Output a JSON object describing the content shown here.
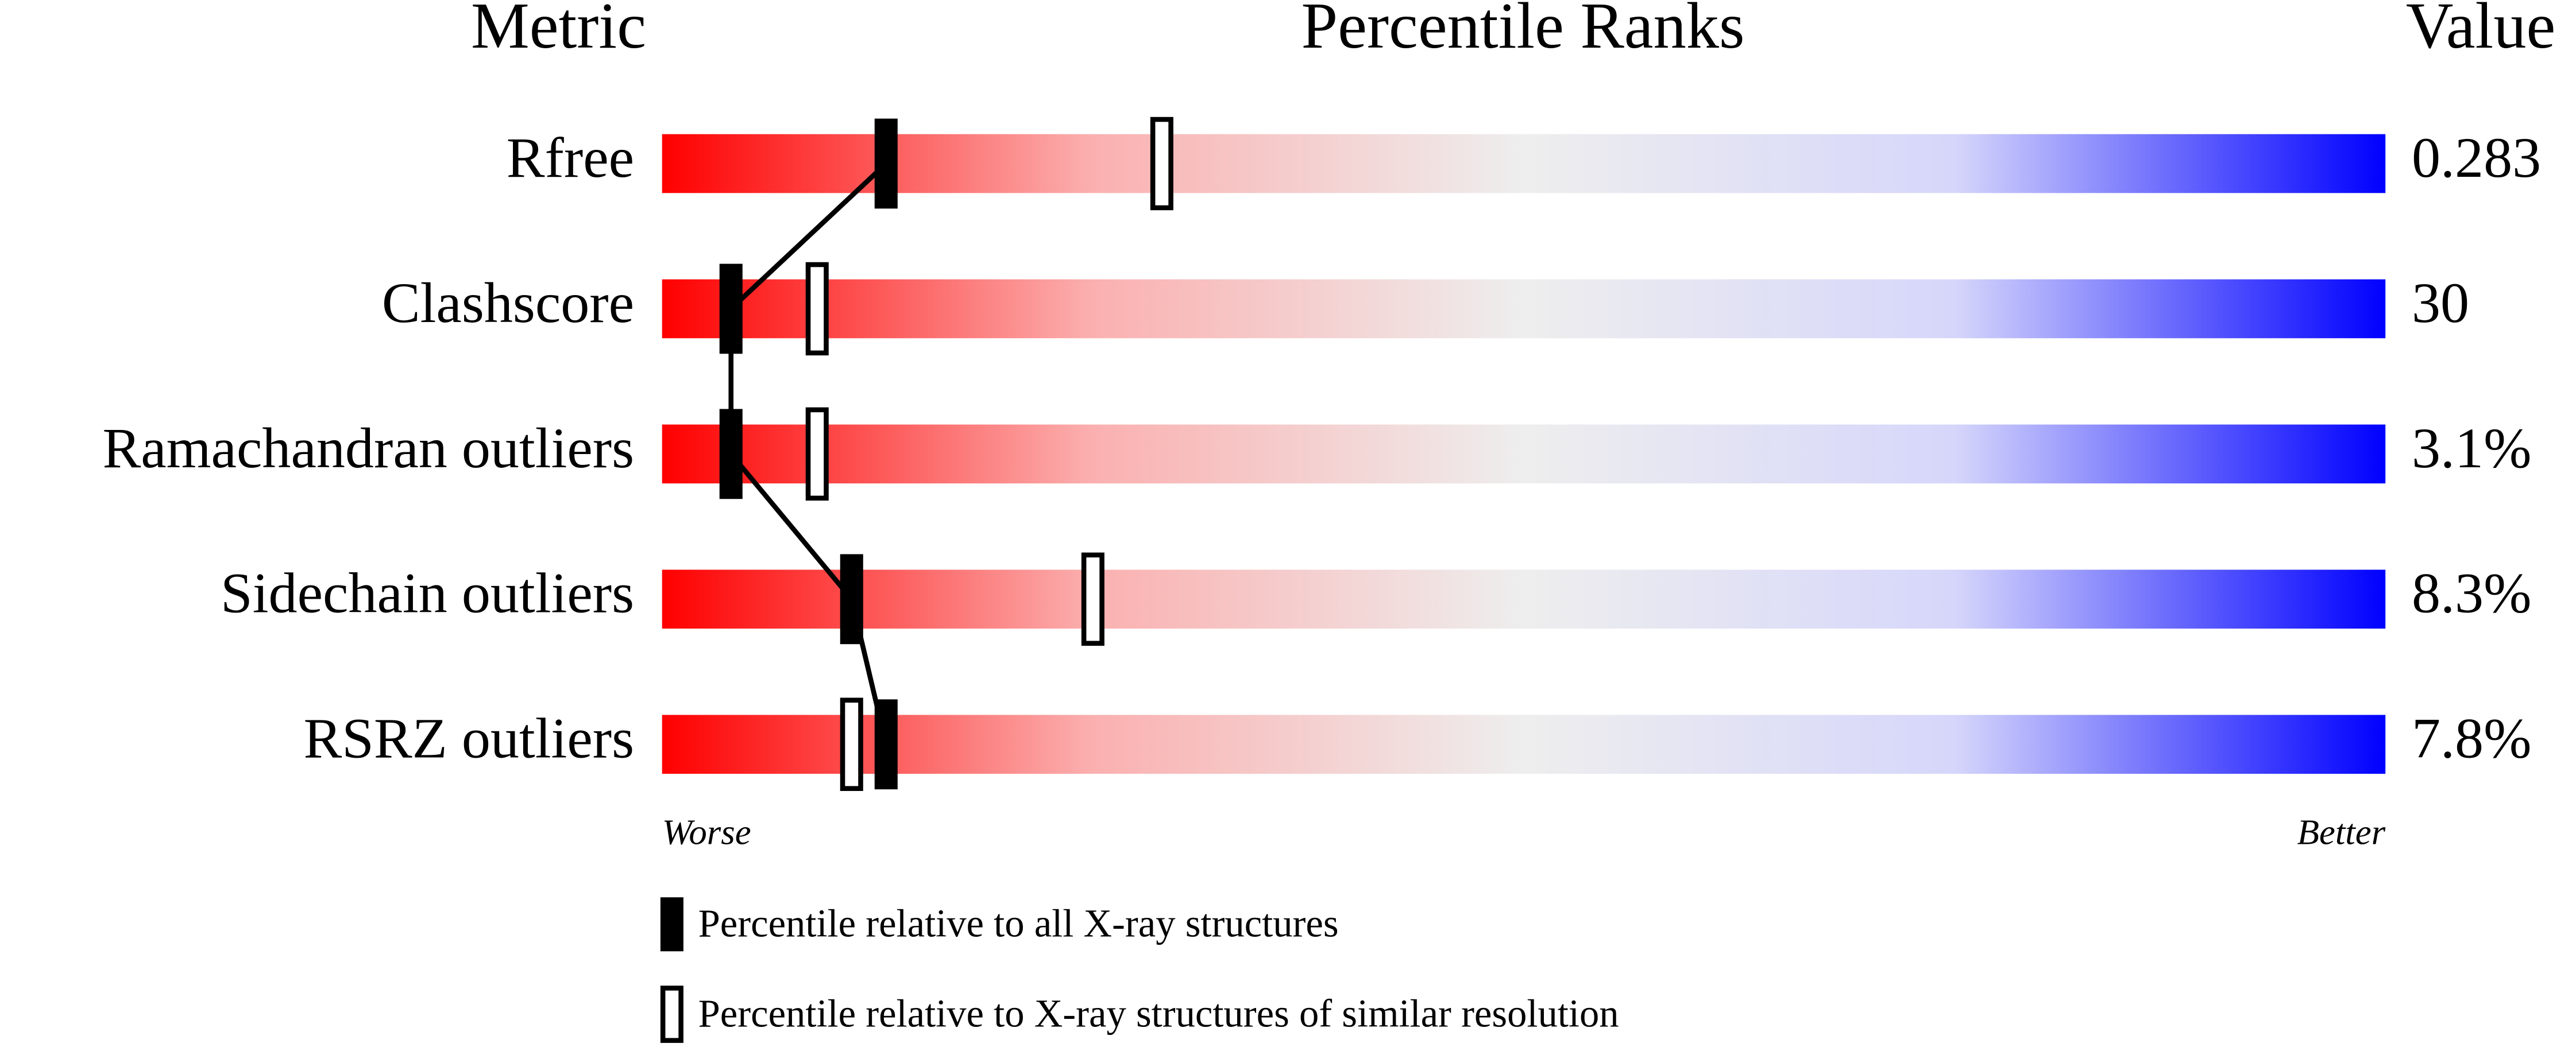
{
  "chart_data": {
    "type": "percentile",
    "title": "Percentile Ranks",
    "metric_header": "Metric",
    "value_header": "Value",
    "categories": [
      "Rfree",
      "Clashscore",
      "Ramachandran outliers",
      "Sidechain outliers",
      "RSRZ outliers"
    ],
    "metric_values": [
      "0.283",
      "30",
      "3.1%",
      "8.3%",
      "7.8%"
    ],
    "xlim": [
      0,
      100
    ],
    "x_low_label": "Worse",
    "x_high_label": "Better",
    "series": [
      {
        "name": "Percentile relative to all X-ray structures",
        "style": "filled",
        "color": "#000000",
        "values": [
          13,
          4,
          4,
          11,
          13
        ]
      },
      {
        "name": "Percentile relative to X-ray structures of similar resolution",
        "style": "hollow",
        "color": "#000000",
        "values": [
          29,
          9,
          9,
          25,
          11
        ]
      }
    ]
  }
}
